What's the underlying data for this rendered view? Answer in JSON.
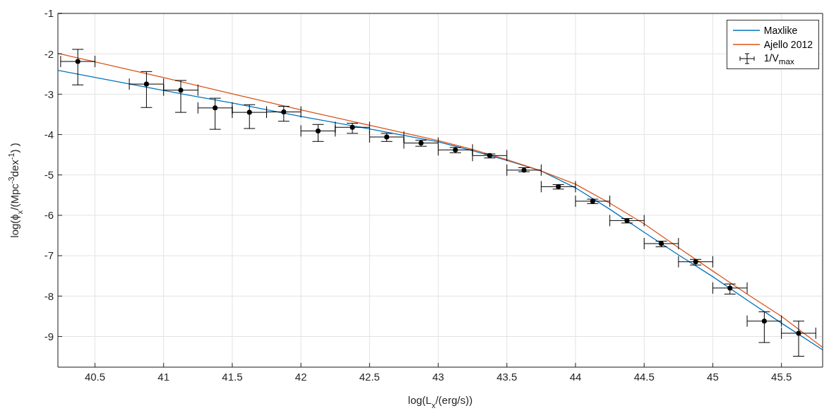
{
  "chart_data": {
    "type": "line",
    "xlabel": "log(L$_{x}$/(erg/s))",
    "ylabel": "log(ϕ$_{x}$/(Mpc$^{-3}$dex$^{-1}$) )",
    "xlim": [
      40.23,
      45.8
    ],
    "ylim": [
      -9.76,
      -1
    ],
    "xticks": [
      40.5,
      41,
      41.5,
      42,
      42.5,
      43,
      43.5,
      44,
      44.5,
      45,
      45.5
    ],
    "yticks": [
      -9,
      -8,
      -7,
      -6,
      -5,
      -4,
      -3,
      -2,
      -1
    ],
    "grid": true,
    "legend": "top right",
    "series": [
      {
        "name": "Maxlike",
        "color": "#0072bd",
        "marker": "none",
        "x": [
          40.23,
          41,
          41.5,
          42,
          42.5,
          43,
          43.25,
          43.5,
          43.75,
          44,
          44.25,
          44.5,
          44.75,
          45,
          45.25,
          45.5,
          45.8
        ],
        "values": [
          -2.41,
          -2.91,
          -3.22,
          -3.55,
          -3.86,
          -4.18,
          -4.4,
          -4.64,
          -4.9,
          -5.32,
          -5.85,
          -6.42,
          -6.98,
          -7.52,
          -8.1,
          -8.67,
          -9.33
        ]
      },
      {
        "name": "Ajello 2012",
        "color": "#d95319",
        "marker": "none",
        "x": [
          40.23,
          41,
          41.5,
          42,
          42.5,
          43,
          43.25,
          43.5,
          43.75,
          44,
          44.25,
          44.5,
          44.75,
          45,
          45.25,
          45.5,
          45.8
        ],
        "values": [
          -1.99,
          -2.59,
          -2.99,
          -3.39,
          -3.77,
          -4.15,
          -4.37,
          -4.62,
          -4.9,
          -5.23,
          -5.7,
          -6.21,
          -6.8,
          -7.38,
          -7.95,
          -8.5,
          -9.27
        ]
      },
      {
        "name": "1/V$_{max}$",
        "type": "scatter",
        "color": "#000000",
        "marker": "circle",
        "x": [
          40.375,
          40.875,
          41.125,
          41.375,
          41.625,
          41.875,
          42.125,
          42.375,
          42.625,
          42.875,
          43.125,
          43.375,
          43.625,
          43.875,
          44.125,
          44.375,
          44.625,
          44.875,
          45.125,
          45.375,
          45.625
        ],
        "values": [
          -2.19,
          -2.75,
          -2.9,
          -3.34,
          -3.45,
          -3.44,
          -3.91,
          -3.82,
          -4.06,
          -4.21,
          -4.38,
          -4.52,
          -4.88,
          -5.29,
          -5.65,
          -6.13,
          -6.7,
          -7.15,
          -7.8,
          -8.62,
          -8.92
        ],
        "errors": [
          [
            -2.77,
            -1.89
          ],
          [
            -3.33,
            -2.44
          ],
          [
            -3.45,
            -2.66
          ],
          [
            -3.87,
            -3.1
          ],
          [
            -3.85,
            -3.26
          ],
          [
            -3.67,
            -3.3
          ],
          [
            -4.17,
            -3.75
          ],
          [
            -3.97,
            -3.72
          ],
          [
            -4.17,
            -3.97
          ],
          [
            -4.29,
            -4.14
          ],
          [
            -4.45,
            -4.32
          ],
          [
            -4.58,
            -4.48
          ],
          [
            -4.92,
            -4.82
          ],
          [
            -5.35,
            -5.24
          ],
          [
            -5.71,
            -5.6
          ],
          [
            -6.19,
            -6.08
          ],
          [
            -6.78,
            -6.64
          ],
          [
            -7.23,
            -7.09
          ],
          [
            -7.95,
            -7.7
          ],
          [
            -9.15,
            -8.39
          ],
          [
            -9.49,
            -8.62
          ]
        ],
        "xerrors": [
          0.125,
          0.125,
          0.125,
          0.125,
          0.125,
          0.125,
          0.125,
          0.125,
          0.125,
          0.125,
          0.125,
          0.125,
          0.125,
          0.125,
          0.125,
          0.125,
          0.125,
          0.125,
          0.125,
          0.125,
          0.125
        ]
      }
    ]
  }
}
